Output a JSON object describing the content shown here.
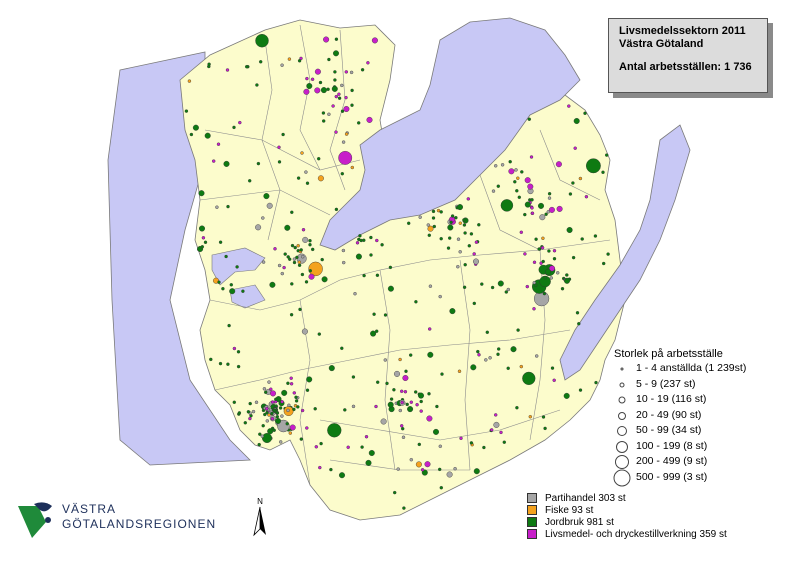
{
  "title": {
    "line1": "Livsmedelssektorn 2011",
    "line2": "Västra Götaland",
    "count": "Antal arbetsställen: 1 736"
  },
  "size_legend": {
    "heading": "Storlek på arbetsställe",
    "classes": [
      {
        "label": "1 - 4 anställda (1 239st)"
      },
      {
        "label": "5 - 9 (237 st)"
      },
      {
        "label": "10 - 19 (116 st)"
      },
      {
        "label": "20 - 49 (90 st)"
      },
      {
        "label": "50 - 99 (34 st)"
      },
      {
        "label": "100 - 199 (8 st)"
      },
      {
        "label": "200 - 499 (9 st)"
      },
      {
        "label": "500 - 999 (3 st)"
      }
    ]
  },
  "category_legend": [
    {
      "label": "Partihandel 303 st",
      "color": "#a6a6a6"
    },
    {
      "label": "Fiske 93 st",
      "color": "#f4a21e"
    },
    {
      "label": "Jordbruk 981 st",
      "color": "#0e7a12"
    },
    {
      "label": "Livsmedel- och dryckestillverkning 359 st",
      "color": "#c71fc9"
    }
  ],
  "logo": {
    "line1": "VÄSTRA",
    "line2": "GÖTALANDSREGIONEN"
  },
  "north_arrow": {
    "label": "N"
  },
  "colors": {
    "land": "#fcfccc",
    "water": "#c8c8f5",
    "border": "#7a7a7a"
  }
}
